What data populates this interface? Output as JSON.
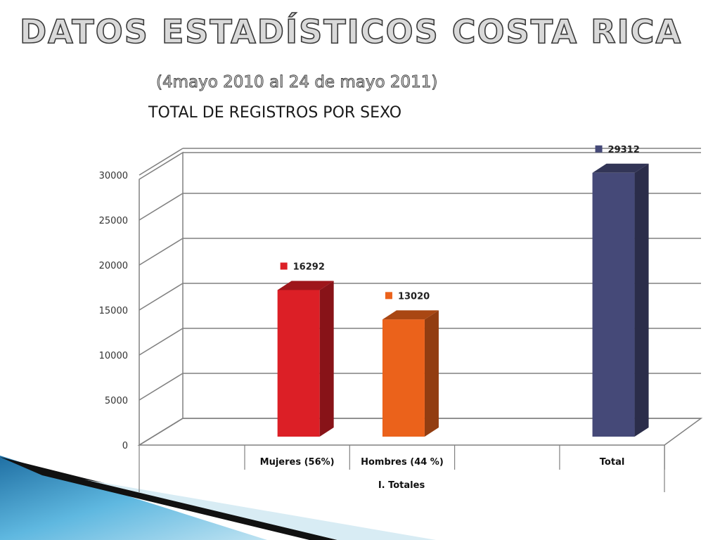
{
  "slide": {
    "title": "DATOS ESTADÍSTICOS COSTA RICA",
    "subtitle": "(4mayo 2010 al 24 de mayo 2011)"
  },
  "chart_data": {
    "type": "bar",
    "title": "TOTAL DE REGISTROS POR SEXO",
    "categories": [
      "Mujeres (56%)",
      "Hombres (44 %)",
      "",
      "Total"
    ],
    "group_label": "I. Totales",
    "series": [
      {
        "name": "16292",
        "category": "Mujeres (56%)",
        "value": 16292,
        "color": "#dc1f26"
      },
      {
        "name": "13020",
        "category": "Hombres (44 %)",
        "value": 13020,
        "color": "#eb621b"
      },
      {
        "name": "29312",
        "category": "Total",
        "value": 29312,
        "color": "#454978"
      }
    ],
    "yticks": [
      0,
      5000,
      10000,
      15000,
      20000,
      25000,
      30000
    ],
    "ylim": [
      0,
      30000
    ],
    "grid": true,
    "legend": "data-labels"
  },
  "colors": {
    "accent_blue": "#2a8fc4",
    "grid": "#808080"
  }
}
